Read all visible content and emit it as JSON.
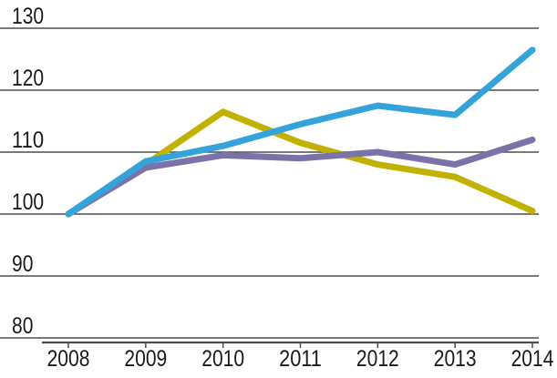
{
  "chart_data": {
    "type": "line",
    "title": "",
    "xlabel": "",
    "ylabel": "",
    "x": [
      2008,
      2009,
      2010,
      2011,
      2012,
      2013,
      2014
    ],
    "series": [
      {
        "name": "gold-line",
        "color": "#C1B100",
        "values": [
          100,
          108,
          116.5,
          111.5,
          108,
          106,
          100.5
        ]
      },
      {
        "name": "purple-line",
        "color": "#7B72A8",
        "values": [
          100,
          107.5,
          109.5,
          109,
          110,
          108,
          112
        ]
      },
      {
        "name": "blue-line",
        "color": "#33A3D9",
        "values": [
          100,
          108.5,
          111,
          114.5,
          117.5,
          116,
          126.5
        ]
      }
    ],
    "yticks": [
      80,
      90,
      100,
      110,
      120,
      130
    ],
    "xticks": [
      "2008",
      "2009",
      "2010",
      "2011",
      "2012",
      "2013",
      "2014"
    ],
    "ylim": [
      80,
      133
    ],
    "grid": true,
    "legend": "none",
    "baseline_value": 100
  },
  "colors": {
    "background": "#FFFFFF",
    "gridline": "#4D4D4D",
    "axis": "#4D4D4D",
    "tick_text": "#1A1A1A"
  }
}
